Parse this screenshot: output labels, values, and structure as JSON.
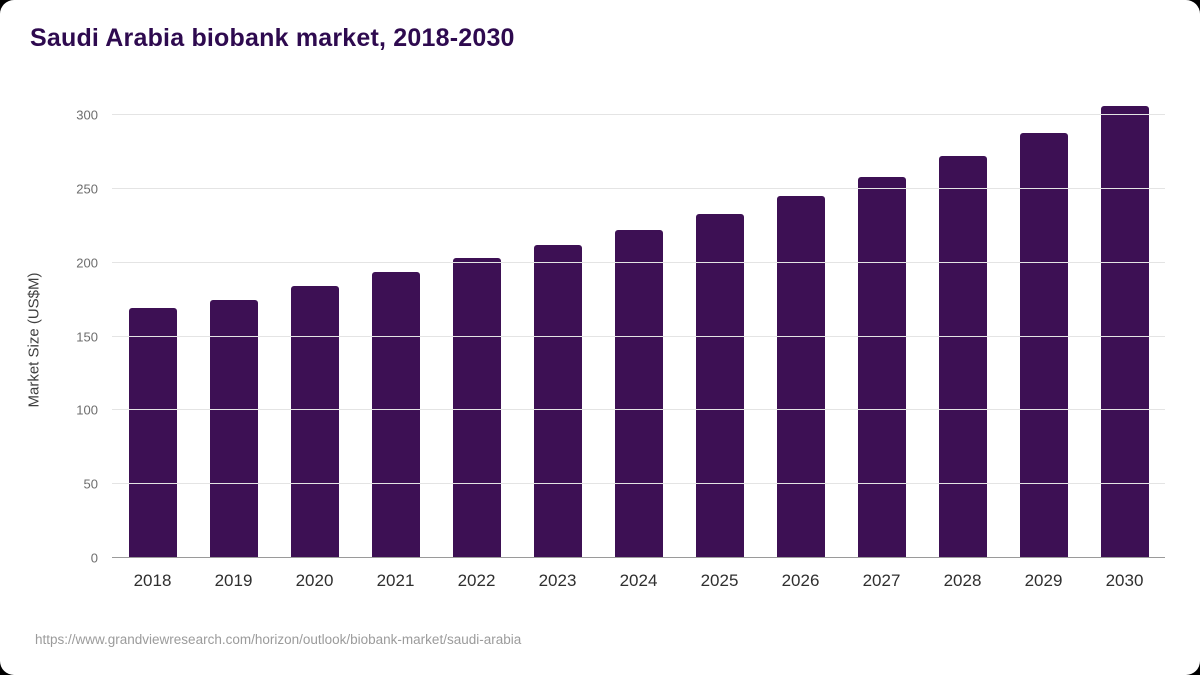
{
  "page": {
    "source_url": "https://www.grandviewresearch.com/horizon/outlook/biobank-market/saudi-arabia"
  },
  "colors": {
    "bar": "#3d1054",
    "title": "#2e0a4f"
  },
  "chart_data": {
    "type": "bar",
    "title": "Saudi Arabia biobank market, 2018-2030",
    "xlabel": "",
    "ylabel": "Market Size (US$M)",
    "categories": [
      "2018",
      "2019",
      "2020",
      "2021",
      "2022",
      "2023",
      "2024",
      "2025",
      "2026",
      "2027",
      "2028",
      "2029",
      "2030"
    ],
    "values": [
      169,
      175,
      184,
      194,
      203,
      212,
      222,
      233,
      245,
      258,
      272,
      288,
      306
    ],
    "yticks": [
      0,
      50,
      100,
      150,
      200,
      250,
      300
    ],
    "ylim": [
      0,
      310
    ],
    "grid": "horizontal",
    "legend": "none"
  }
}
